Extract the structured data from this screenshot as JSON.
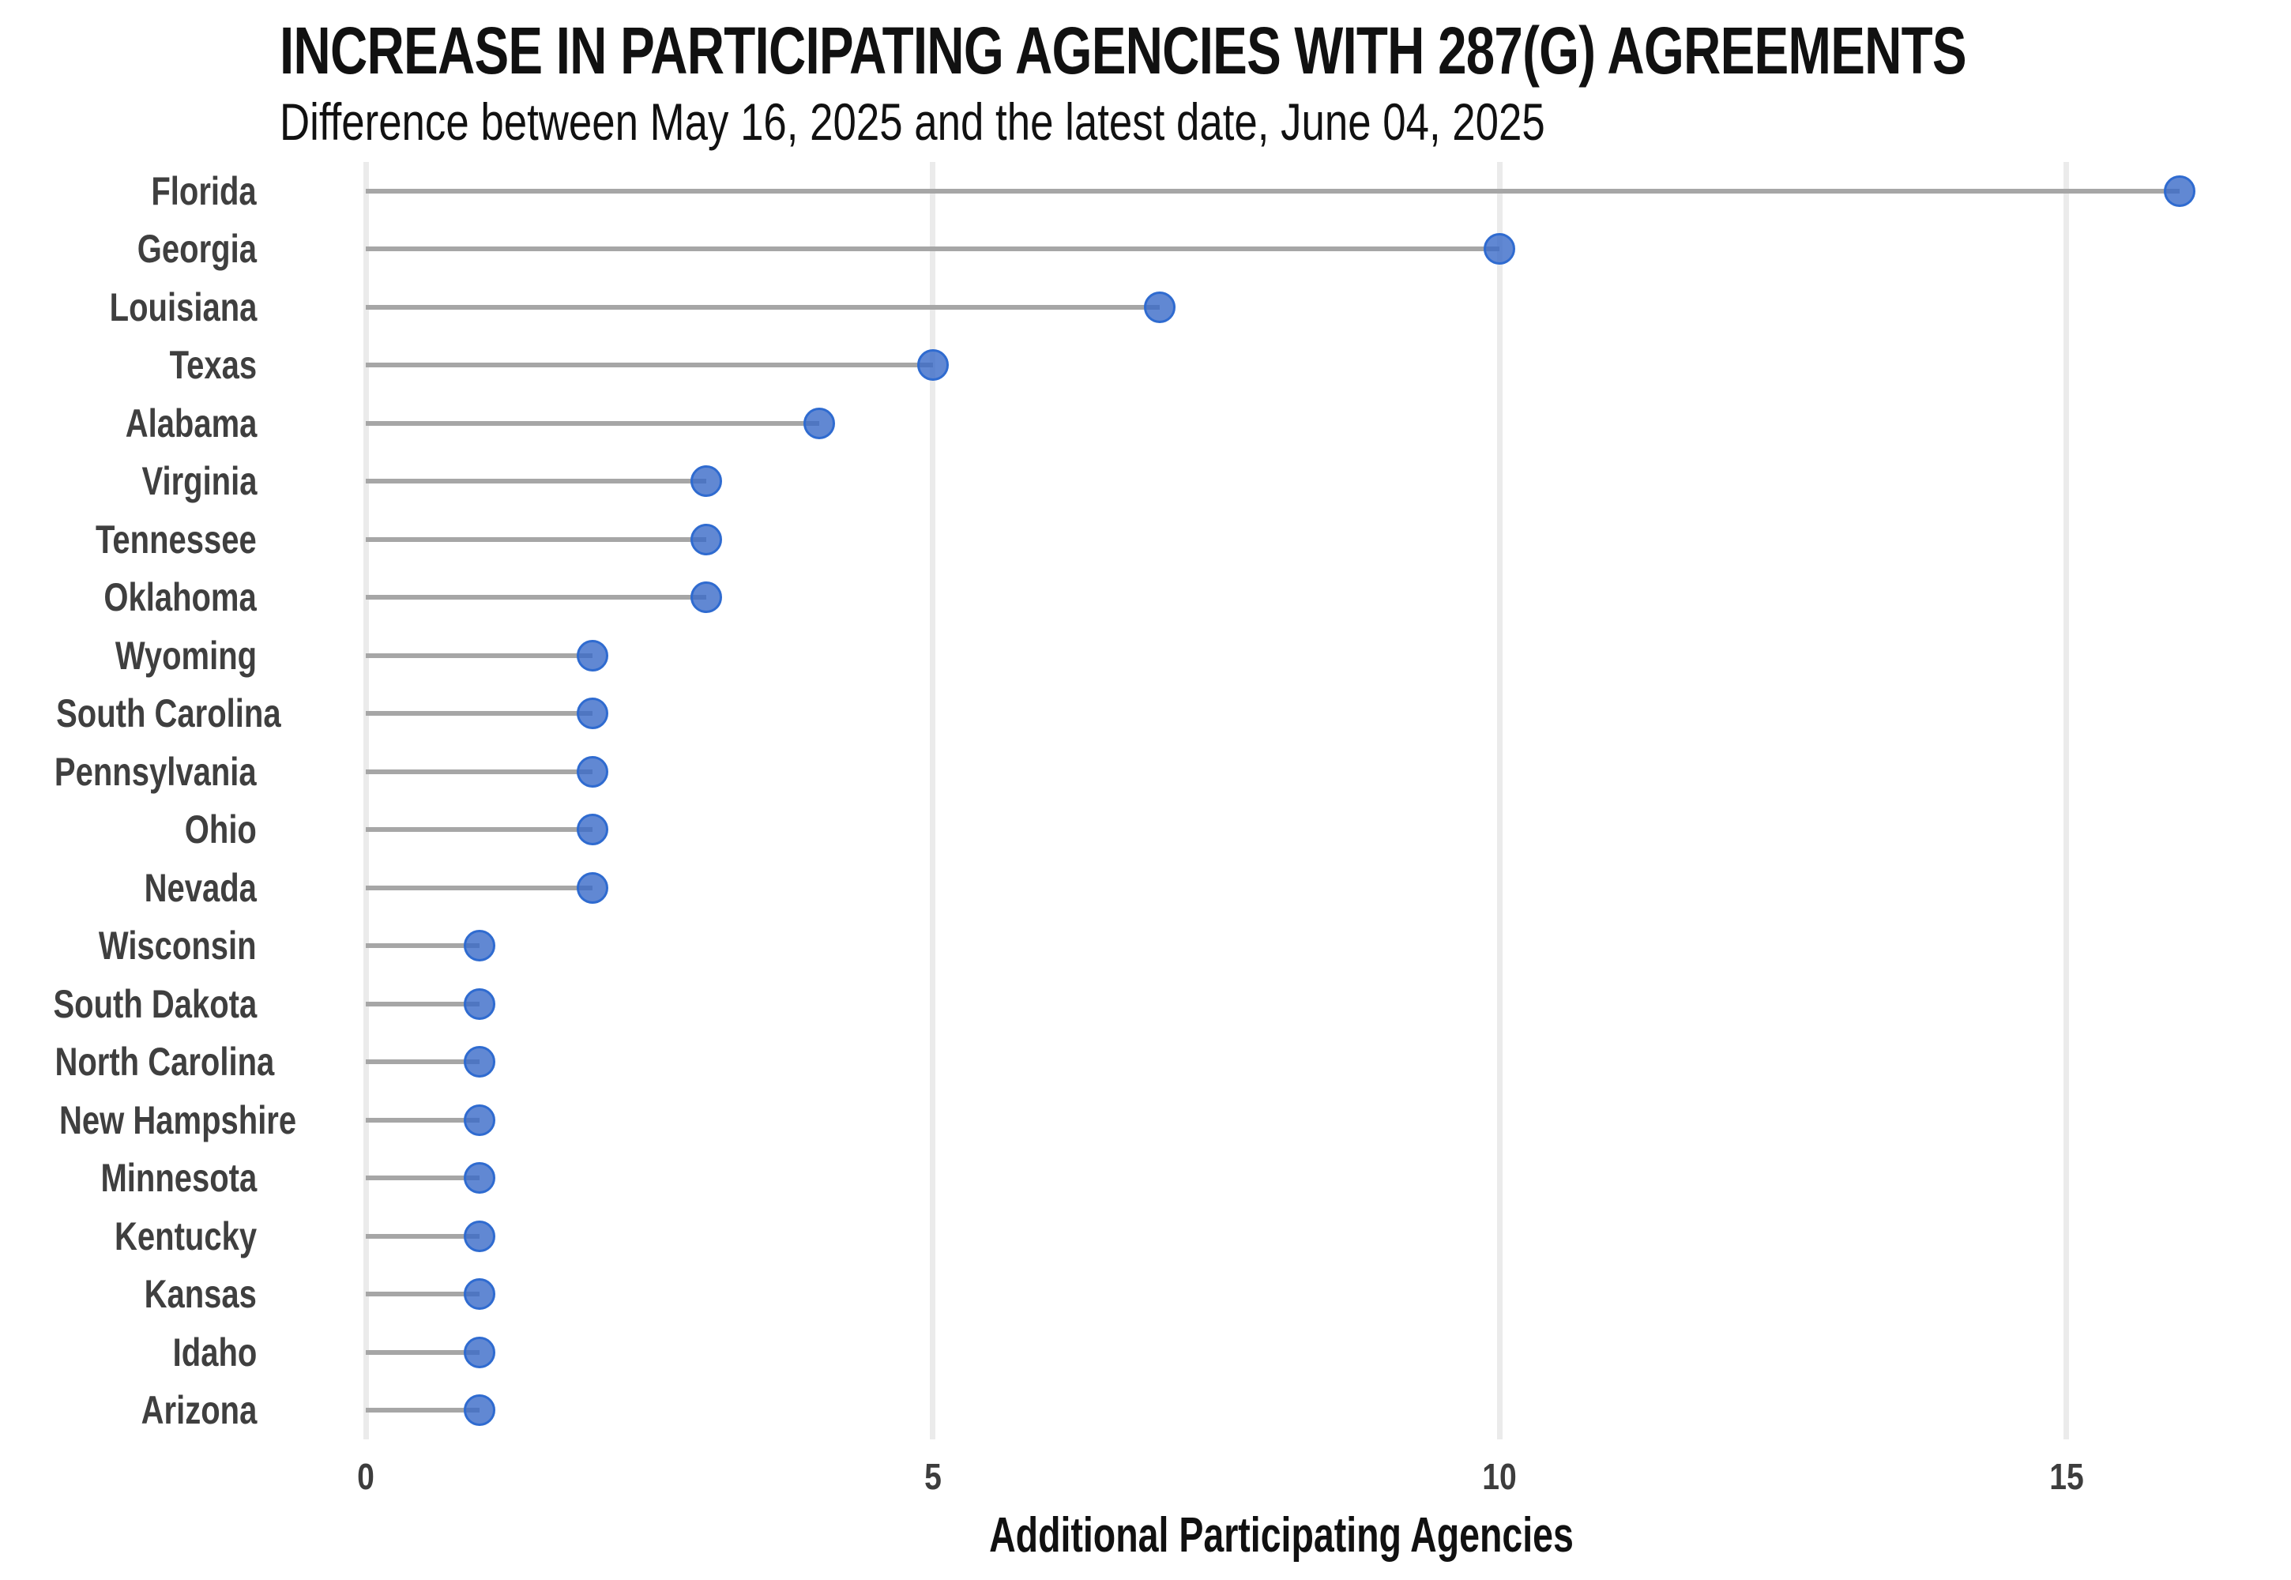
{
  "chart_data": {
    "type": "bar",
    "variant": "horizontal-lollipop",
    "title": "INCREASE IN PARTICIPATING AGENCIES WITH 287(G) AGREEMENTS",
    "subtitle": "Difference between May 16, 2025 and the latest date, June 04, 2025",
    "xlabel": "Additional Participating Agencies",
    "ylabel": "",
    "categories": [
      "Florida",
      "Georgia",
      "Louisiana",
      "Texas",
      "Alabama",
      "Virginia",
      "Tennessee",
      "Oklahoma",
      "Wyoming",
      "South Carolina",
      "Pennsylvania",
      "Ohio",
      "Nevada",
      "Wisconsin",
      "South Dakota",
      "North Carolina",
      "New Hampshire",
      "Minnesota",
      "Kentucky",
      "Kansas",
      "Idaho",
      "Arizona"
    ],
    "values": [
      16,
      10,
      7,
      5,
      4,
      3,
      3,
      3,
      2,
      2,
      2,
      2,
      2,
      1,
      1,
      1,
      1,
      1,
      1,
      1,
      1,
      1
    ],
    "xticks": [
      0,
      5,
      10,
      15
    ],
    "xlim": [
      0,
      16.6
    ],
    "grid": "vertical-only",
    "legend": "none",
    "colors": {
      "dot_fill": "#6188d3",
      "dot_border": "#2f6bd0",
      "stem": "#a6a6a6",
      "gridline": "#ebebeb",
      "state_label": "#3f3f3f",
      "tick_label": "#3d3d3d",
      "title": "#111111"
    }
  }
}
